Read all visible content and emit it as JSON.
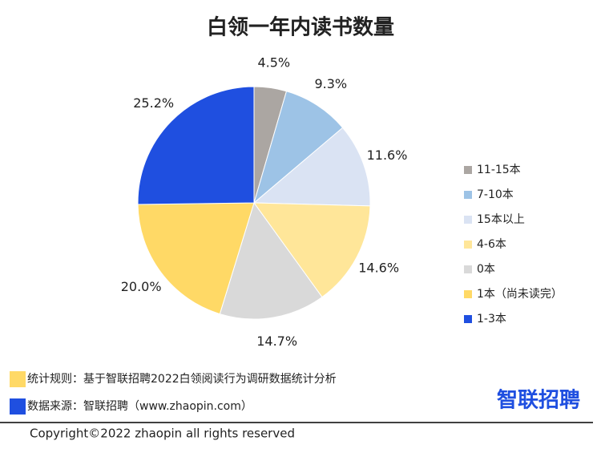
{
  "chart_data": {
    "type": "pie",
    "title": "白领一年内读书数量",
    "categories": [
      "11-15本",
      "7-10本",
      "15本以上",
      "4-6本",
      "0本",
      "1本（尚未读完）",
      "1-3本"
    ],
    "values": [
      4.5,
      9.3,
      11.6,
      14.6,
      14.7,
      20.0,
      25.2
    ],
    "value_labels": [
      "4.5%",
      "9.3%",
      "11.6%",
      "14.6%",
      "14.7%",
      "20.0%",
      "25.2%"
    ],
    "colors": [
      "#aba6a2",
      "#9dc3e6",
      "#dae3f3",
      "#ffe699",
      "#d9d9d9",
      "#ffd966",
      "#1f4fe0"
    ],
    "legend": "right",
    "notes": [
      {
        "text": "统计规则：基于智联招聘2022白领阅读行为调研数据统计分析",
        "color": "#ffd966"
      },
      {
        "text": "数据来源：智联招聘（www.zhaopin.com）",
        "color": "#1f4fe0"
      }
    ],
    "logo": "智联招聘",
    "copyright": "Copyright©2022 zhaopin all rights reserved"
  }
}
